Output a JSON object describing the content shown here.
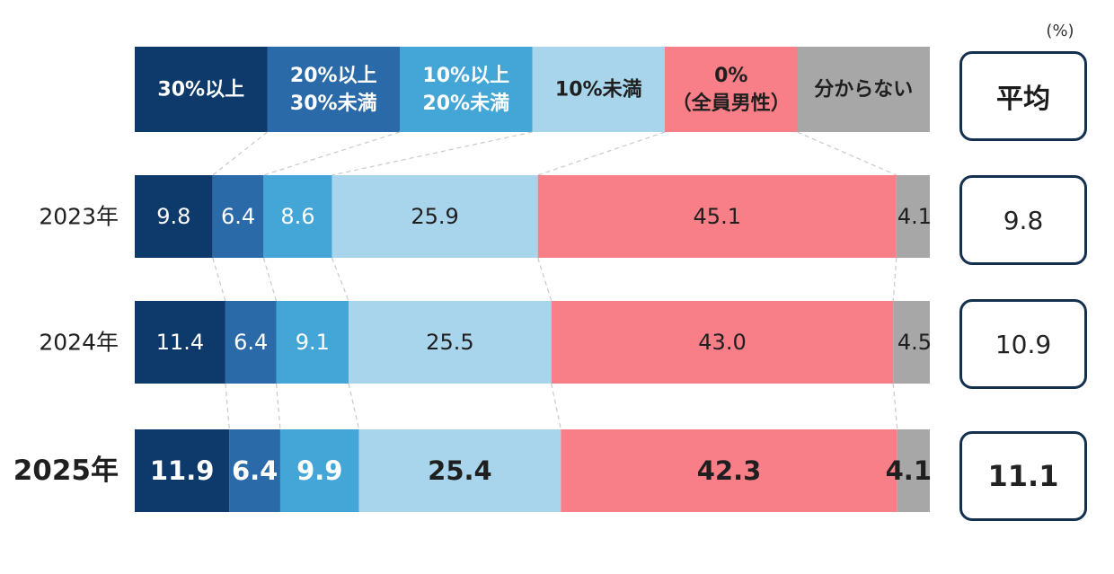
{
  "unit_label": "(%)",
  "average_header": "平均",
  "averages": [
    "9.8",
    "10.9",
    "11.1"
  ],
  "colors": {
    "c30plus": "#0d3a6b",
    "c20to30": "#2b6aa8",
    "c10to20": "#44a6d6",
    "cunder10": "#a8d5ec",
    "c0": "#f87e87",
    "cunknown": "#a7a7a7",
    "box_border": "#13304f"
  },
  "chart_data": {
    "type": "bar",
    "orientation": "horizontal",
    "stacked": true,
    "percent": true,
    "categories": [
      "2023年",
      "2024年",
      "2025年"
    ],
    "series": [
      {
        "name": "30%以上",
        "values": [
          9.8,
          11.4,
          11.9
        ]
      },
      {
        "name": "20%以上\n30%未満",
        "values": [
          6.4,
          6.4,
          6.4
        ]
      },
      {
        "name": "10%以上\n20%未満",
        "values": [
          8.6,
          9.1,
          9.9
        ]
      },
      {
        "name": "10%未満",
        "values": [
          25.9,
          25.5,
          25.4
        ]
      },
      {
        "name": "0%\n（全員男性）",
        "values": [
          45.1,
          43.0,
          42.3
        ]
      },
      {
        "name": "分からない",
        "values": [
          4.1,
          4.5,
          4.1
        ]
      }
    ],
    "value_labels": [
      [
        "9.8",
        "6.4",
        "8.6",
        "25.9",
        "45.1",
        "4.1"
      ],
      [
        "11.4",
        "6.4",
        "9.1",
        "25.5",
        "43.0",
        "4.5"
      ],
      [
        "11.9",
        "6.4",
        "9.9",
        "25.4",
        "42.3",
        "4.1"
      ]
    ],
    "legend_position": "top",
    "xlim": [
      0,
      100
    ]
  }
}
